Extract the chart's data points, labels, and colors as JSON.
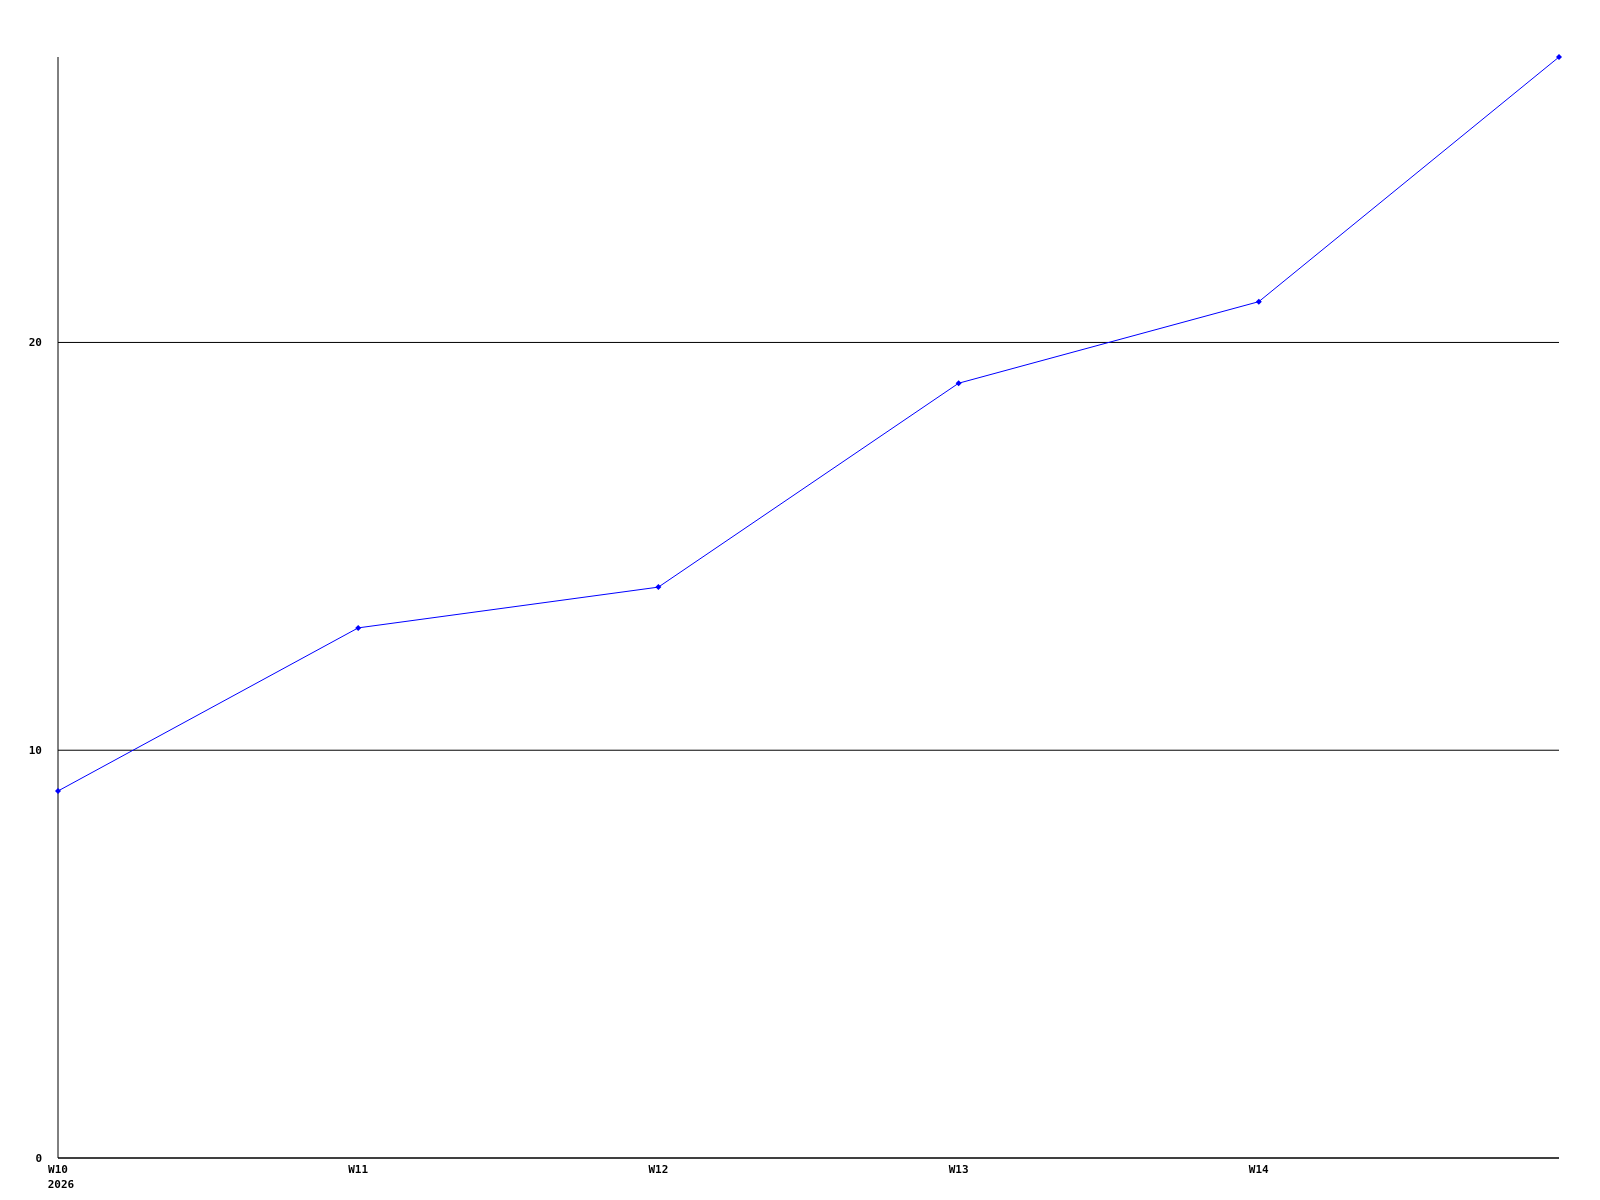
{
  "chart_data": {
    "type": "line",
    "categories": [
      "W10",
      "W11",
      "W12",
      "W13",
      "W14",
      null
    ],
    "series": [
      {
        "color": "#0000ff",
        "values": [
          9,
          13,
          14,
          19,
          21,
          27
        ]
      }
    ],
    "ylim": [
      0,
      27
    ],
    "yticks": [
      0,
      10,
      20
    ],
    "grid": "y",
    "marker": "diamond",
    "line_style": "solid",
    "annotations": [
      "2026"
    ]
  }
}
